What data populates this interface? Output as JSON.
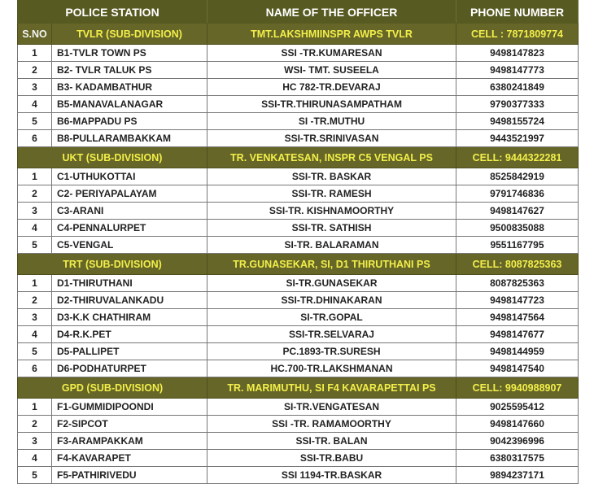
{
  "header": {
    "police_station": "POLICE STATION",
    "officer": "NAME OF THE OFFICER",
    "phone": "PHONE NUMBER",
    "sno": "S.NO"
  },
  "colors": {
    "header_bg": "#575b22",
    "subdivision_bg": "#666628",
    "subdivision_text": "#f2ef4a"
  },
  "sections": [
    {
      "subdivision": "TVLR  (SUB-DIVISION)",
      "head_officer": "TMT.LAKSHMIINSPR AWPS  TVLR",
      "cell": "CELL : 7871809774",
      "rows": [
        {
          "no": "1",
          "station": "B1-TVLR TOWN  PS",
          "officer": "SSI -TR.KUMARESAN",
          "phone": "9498147823"
        },
        {
          "no": "2",
          "station": "B2- TVLR TALUK   PS",
          "officer": "WSI- TMT. SUSEELA",
          "phone": "9498147773"
        },
        {
          "no": "3",
          "station": "B3- KADAMBATHUR",
          "officer": "HC  782-TR.DEVARAJ",
          "phone": "6380241849"
        },
        {
          "no": "4",
          "station": "B5-MANAVALANAGAR",
          "officer": "SSI-TR.THIRUNASAMPATHAM",
          "phone": "9790377333"
        },
        {
          "no": "5",
          "station": "B6-MAPPADU PS",
          "officer": "SI -TR.MUTHU",
          "phone": "9498155724"
        },
        {
          "no": "6",
          "station": "B8-PULLARAMBAKKAM",
          "officer": "SSI-TR.SRINIVASAN",
          "phone": "9443521997"
        }
      ]
    },
    {
      "subdivision": "UKT  (SUB-DIVISION)",
      "head_officer": "TR. VENKATESAN,  INSPR  C5 VENGAL PS",
      "cell": "CELL: 9444322281",
      "rows": [
        {
          "no": "1",
          "station": "C1-UTHUKOTTAI",
          "officer": "SSI-TR. BASKAR",
          "phone": "8525842919"
        },
        {
          "no": "2",
          "station": "C2- PERIYAPALAYAM",
          "officer": "SSI-TR. RAMESH",
          "phone": "9791746836"
        },
        {
          "no": "3",
          "station": "C3-ARANI",
          "officer": "SSI-TR. KISHNAMOORTHY",
          "phone": "9498147627"
        },
        {
          "no": "4",
          "station": "C4-PENNALURPET",
          "officer": "SSI-TR. SATHISH",
          "phone": "9500835088"
        },
        {
          "no": "5",
          "station": "C5-VENGAL",
          "officer": "SI-TR. BALARAMAN",
          "phone": "9551167795"
        }
      ]
    },
    {
      "subdivision": "TRT  (SUB-DIVISION)",
      "head_officer": "TR.GUNASEKAR, SI, D1 THIRUTHANI PS",
      "cell": "CELL: 8087825363",
      "rows": [
        {
          "no": "1",
          "station": "D1-THIRUTHANI",
          "officer": "SI-TR.GUNASEKAR",
          "phone": "8087825363"
        },
        {
          "no": "2",
          "station": "D2-THIRUVALANKADU",
          "officer": "SSI-TR.DHINAKARAN",
          "phone": "9498147723"
        },
        {
          "no": "3",
          "station": "D3-K.K CHATHIRAM",
          "officer": "SI-TR.GOPAL",
          "phone": "9498147564"
        },
        {
          "no": "4",
          "station": "D4-R.K.PET",
          "officer": "SSI-TR.SELVARAJ",
          "phone": "9498147677"
        },
        {
          "no": "5",
          "station": "D5-PALLIPET",
          "officer": "PC.1893-TR.SURESH",
          "phone": "9498144959"
        },
        {
          "no": "6",
          "station": "D6-PODHATURPET",
          "officer": "HC.700-TR.LAKSHMANAN",
          "phone": "9498147540"
        }
      ]
    },
    {
      "subdivision": "GPD  (SUB-DIVISION)",
      "head_officer": "TR. MARIMUTHU, SI   F4 KAVARAPETTAI PS",
      "cell": "CELL:  9940988907",
      "rows": [
        {
          "no": "1",
          "station": "F1-GUMMIDIPOONDI",
          "officer": "SI-TR.VENGATESAN",
          "phone": "9025595412"
        },
        {
          "no": "2",
          "station": "F2-SIPCOT",
          "officer": "SSI -TR. RAMAMOORTHY",
          "phone": "9498147660"
        },
        {
          "no": "3",
          "station": "F3-ARAMPAKKAM",
          "officer": "SSI-TR. BALAN",
          "phone": "9042396996"
        },
        {
          "no": "4",
          "station": "F4-KAVARAPET",
          "officer": "SSI-TR.BABU",
          "phone": "6380317575"
        },
        {
          "no": "5",
          "station": "F5-PATHIRIVEDU",
          "officer": "SSI 1194-TR.BASKAR",
          "phone": "9894237171"
        }
      ]
    }
  ]
}
